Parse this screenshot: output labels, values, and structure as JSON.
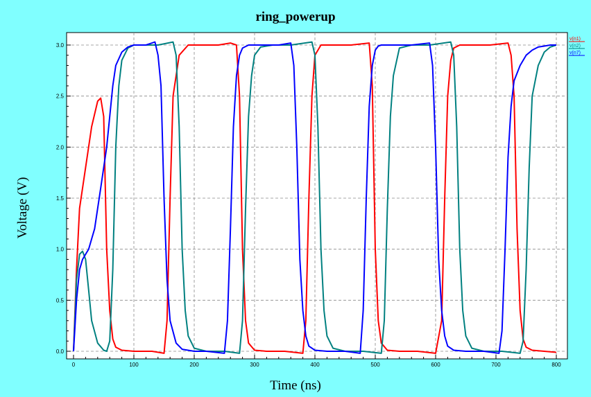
{
  "chart_data": {
    "type": "line",
    "title": "ring_powerup",
    "xlabel": "Time (ns)",
    "ylabel": "Voltage (V)",
    "xlim": [
      0,
      800
    ],
    "ylim": [
      0,
      3.0
    ],
    "xticks": [
      0,
      100,
      200,
      300,
      400,
      500,
      600,
      700,
      800
    ],
    "yticks": [
      0.0,
      0.5,
      1.0,
      1.5,
      2.0,
      2.5,
      3.0
    ],
    "xtick_labels": [
      "0",
      "100",
      "200",
      "300",
      "400",
      "500",
      "600",
      "700",
      "800"
    ],
    "ytick_labels": [
      "0.0",
      "0.5",
      "1.0",
      "1.5",
      "2.0",
      "2.5",
      "3.0"
    ],
    "grid": true,
    "legend_position": "right-top, outside",
    "series": [
      {
        "name": "v(n1)",
        "color": "#ff0000",
        "x": [
          0,
          5,
          10,
          20,
          30,
          40,
          45,
          50,
          55,
          60,
          65,
          70,
          80,
          100,
          130,
          150,
          155,
          160,
          165,
          175,
          190,
          210,
          240,
          260,
          270,
          275,
          280,
          285,
          290,
          300,
          320,
          350,
          380,
          385,
          390,
          395,
          400,
          410,
          430,
          460,
          490,
          495,
          500,
          505,
          510,
          520,
          540,
          570,
          600,
          610,
          615,
          620,
          625,
          630,
          640,
          660,
          690,
          720,
          725,
          730,
          735,
          740,
          745,
          750,
          760,
          780,
          800
        ],
        "y": [
          0.0,
          0.8,
          1.4,
          1.8,
          2.2,
          2.45,
          2.48,
          2.3,
          1.0,
          0.4,
          0.12,
          0.04,
          0.01,
          0.0,
          0.0,
          -0.02,
          0.3,
          1.5,
          2.5,
          2.9,
          3.0,
          3.0,
          3.0,
          3.02,
          3.0,
          2.5,
          1.0,
          0.3,
          0.08,
          0.01,
          0.0,
          0.0,
          -0.02,
          0.3,
          1.5,
          2.5,
          2.9,
          3.0,
          3.0,
          3.0,
          3.02,
          2.6,
          1.0,
          0.3,
          0.08,
          0.01,
          0.0,
          0.0,
          -0.02,
          0.3,
          1.5,
          2.5,
          2.85,
          2.97,
          3.0,
          3.0,
          3.0,
          3.02,
          2.9,
          2.5,
          1.2,
          0.4,
          0.12,
          0.04,
          0.01,
          0.0,
          -0.01
        ]
      },
      {
        "name": "v(n2)",
        "color": "#008080",
        "x": [
          0,
          5,
          10,
          15,
          20,
          25,
          30,
          40,
          50,
          55,
          60,
          65,
          70,
          75,
          80,
          90,
          100,
          120,
          140,
          165,
          170,
          175,
          180,
          185,
          190,
          200,
          220,
          250,
          275,
          280,
          285,
          290,
          295,
          300,
          310,
          330,
          360,
          395,
          400,
          405,
          410,
          415,
          420,
          430,
          450,
          480,
          510,
          515,
          520,
          525,
          530,
          540,
          560,
          590,
          625,
          630,
          635,
          640,
          645,
          650,
          660,
          680,
          710,
          740,
          745,
          750,
          755,
          760,
          770,
          780,
          790,
          800
        ],
        "y": [
          0.0,
          0.7,
          0.95,
          0.98,
          0.9,
          0.6,
          0.3,
          0.08,
          0.01,
          0.0,
          0.1,
          0.8,
          2.0,
          2.6,
          2.85,
          2.97,
          3.0,
          3.0,
          3.0,
          3.03,
          2.9,
          2.2,
          1.0,
          0.4,
          0.15,
          0.03,
          0.0,
          0.0,
          -0.02,
          0.3,
          1.4,
          2.3,
          2.7,
          2.9,
          2.98,
          3.0,
          3.0,
          3.03,
          2.9,
          2.2,
          1.0,
          0.4,
          0.15,
          0.03,
          0.0,
          0.0,
          -0.02,
          0.3,
          1.4,
          2.3,
          2.7,
          2.97,
          3.0,
          3.0,
          3.03,
          2.9,
          2.2,
          1.0,
          0.4,
          0.15,
          0.03,
          0.0,
          0.0,
          -0.02,
          0.1,
          0.8,
          1.8,
          2.5,
          2.8,
          2.93,
          2.98,
          3.0
        ]
      },
      {
        "name": "v(n7)",
        "color": "#0000ff",
        "x": [
          0,
          5,
          10,
          15,
          20,
          25,
          30,
          35,
          40,
          45,
          50,
          55,
          60,
          65,
          70,
          80,
          90,
          100,
          110,
          120,
          130,
          135,
          140,
          145,
          150,
          155,
          160,
          170,
          180,
          200,
          220,
          250,
          255,
          260,
          265,
          270,
          275,
          280,
          290,
          310,
          340,
          360,
          365,
          370,
          375,
          380,
          385,
          390,
          400,
          420,
          450,
          475,
          480,
          485,
          490,
          495,
          500,
          505,
          510,
          520,
          540,
          560,
          590,
          595,
          600,
          605,
          610,
          615,
          620,
          630,
          650,
          680,
          705,
          710,
          715,
          720,
          725,
          730,
          740,
          750,
          760,
          770,
          780,
          790,
          800
        ],
        "y": [
          0.0,
          0.5,
          0.8,
          0.9,
          0.95,
          1.0,
          1.1,
          1.2,
          1.4,
          1.6,
          1.8,
          2.0,
          2.3,
          2.6,
          2.8,
          2.93,
          2.98,
          3.0,
          3.0,
          3.0,
          3.02,
          3.03,
          2.9,
          2.6,
          1.5,
          0.7,
          0.3,
          0.08,
          0.02,
          0.0,
          0.0,
          -0.02,
          0.3,
          1.2,
          2.2,
          2.7,
          2.9,
          2.97,
          3.0,
          3.0,
          3.0,
          3.02,
          2.8,
          2.0,
          0.9,
          0.4,
          0.15,
          0.05,
          0.01,
          0.0,
          0.0,
          -0.02,
          0.4,
          1.5,
          2.4,
          2.8,
          2.95,
          2.99,
          3.0,
          3.0,
          3.0,
          3.0,
          3.02,
          2.8,
          2.0,
          0.9,
          0.4,
          0.15,
          0.05,
          0.01,
          0.0,
          0.0,
          -0.02,
          0.2,
          1.0,
          1.9,
          2.4,
          2.65,
          2.8,
          2.9,
          2.95,
          2.98,
          2.99,
          3.0,
          3.0
        ]
      }
    ]
  }
}
